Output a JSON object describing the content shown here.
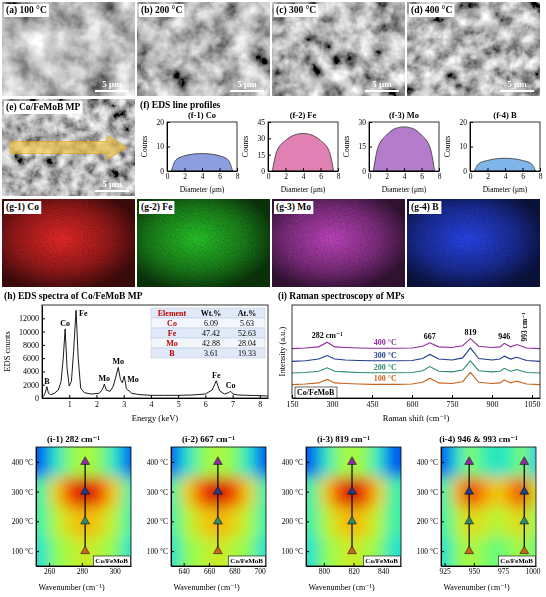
{
  "chart_data": [
    {
      "type": "image",
      "title": "(a) 100 °C",
      "annotations": [
        {
          "text": "5 μm"
        }
      ]
    },
    {
      "type": "image",
      "title": "(b) 200 °C",
      "annotations": [
        {
          "text": "5 μm"
        }
      ]
    },
    {
      "type": "image",
      "title": "(c) 300 °C",
      "annotations": [
        {
          "text": "5 μm"
        }
      ]
    },
    {
      "type": "image",
      "title": "(d) 400 °C",
      "annotations": [
        {
          "text": "5 μm"
        }
      ]
    },
    {
      "type": "image",
      "title": "(e) Co/FeMoB MP",
      "annotations": [
        {
          "text": "5 μm"
        }
      ]
    },
    {
      "type": "panel_group",
      "title": "(f) EDS line profiles",
      "panels": [
        {
          "type": "area",
          "title": "(f-1) Co",
          "x_label": "Diameter (μm)",
          "y_label": "Counts",
          "x": [
            0.5,
            1,
            2,
            3,
            4,
            5,
            6,
            7,
            7.5
          ],
          "values": [
            0,
            4.5,
            6.2,
            6.9,
            7.1,
            6.9,
            6.2,
            4.5,
            0
          ],
          "color": "#6f86d6",
          "xlim": [
            0,
            8
          ],
          "xticks": [
            0,
            2,
            4,
            6,
            8
          ],
          "ylim": [
            0,
            20
          ],
          "yticks": [
            0,
            10,
            20
          ]
        },
        {
          "type": "area",
          "title": "(f-2) Fe",
          "x_label": "Diameter (μm)",
          "y_label": "Counts",
          "x": [
            0.5,
            1,
            2,
            3,
            4,
            5,
            6,
            7,
            7.5
          ],
          "values": [
            0,
            18,
            28,
            33,
            34.5,
            33,
            28,
            18,
            0
          ],
          "color": "#d9609f",
          "xlim": [
            0,
            8
          ],
          "xticks": [
            0,
            2,
            4,
            6,
            8
          ],
          "ylim": [
            0,
            45
          ],
          "yticks": [
            0,
            15,
            30,
            45
          ]
        },
        {
          "type": "area",
          "title": "(f-3) Mo",
          "x_label": "Diameter (μm)",
          "y_label": "Counts",
          "x": [
            0.5,
            1,
            2,
            3,
            4,
            5,
            6,
            7,
            7.5
          ],
          "values": [
            0,
            14,
            22,
            26,
            27,
            26,
            22,
            14,
            0
          ],
          "color": "#a35bbf",
          "xlim": [
            0,
            8
          ],
          "xticks": [
            0,
            2,
            4,
            6,
            8
          ],
          "ylim": [
            0,
            30
          ],
          "yticks": [
            0,
            15,
            30
          ]
        },
        {
          "type": "area",
          "title": "(f-4) B",
          "x_label": "Diameter (μm)",
          "y_label": "Counts",
          "x": [
            0.5,
            1,
            2,
            3,
            4,
            5,
            6,
            7,
            7.5
          ],
          "values": [
            0,
            3,
            4.3,
            5,
            5.2,
            5,
            4.3,
            3,
            0
          ],
          "color": "#5fa3e3",
          "xlim": [
            0,
            8
          ],
          "xticks": [
            0,
            2,
            4,
            6,
            8
          ],
          "ylim": [
            0,
            20
          ],
          "yticks": [
            0,
            10,
            20
          ]
        }
      ]
    },
    {
      "type": "map",
      "title": "(g-1) Co",
      "color": "#ff2a2a"
    },
    {
      "type": "map",
      "title": "(g-2) Fe",
      "color": "#2ad52a"
    },
    {
      "type": "map",
      "title": "(g-3) Mo",
      "color": "#d04ad0"
    },
    {
      "type": "map",
      "title": "(g-4) B",
      "color": "#2a4aff"
    },
    {
      "type": "line",
      "title": "(h) EDS spectra of Co/FeMoB MP",
      "x_label": "Energy (keV)",
      "y_label": "EDS counts",
      "x": [
        0.05,
        0.12,
        0.18,
        0.24,
        0.32,
        0.45,
        0.6,
        0.7,
        0.78,
        0.85,
        0.92,
        1.0,
        1.08,
        1.16,
        1.25,
        1.33,
        1.42,
        1.55,
        1.8,
        2.1,
        2.22,
        2.29,
        2.36,
        2.5,
        2.62,
        2.7,
        2.8,
        2.88,
        2.95,
        3.02,
        3.1,
        3.3,
        3.6,
        4.0,
        4.5,
        5.0,
        5.5,
        6.0,
        6.25,
        6.4,
        6.52,
        6.7,
        6.85,
        6.93,
        7.02,
        7.2,
        7.6,
        8.0,
        8.3
      ],
      "values": [
        200,
        800,
        1700,
        700,
        500,
        700,
        1200,
        2500,
        6000,
        10400,
        4500,
        1800,
        2500,
        7000,
        13200,
        6000,
        1500,
        800,
        600,
        700,
        1300,
        2100,
        1200,
        1000,
        1800,
        3000,
        4600,
        2800,
        2300,
        3300,
        1400,
        700,
        500,
        400,
        400,
        400,
        450,
        600,
        1200,
        2600,
        1100,
        600,
        800,
        1000,
        600,
        450,
        400,
        350,
        300
      ],
      "color": "#000000",
      "xlim": [
        0,
        8.3
      ],
      "xticks": [
        1,
        2,
        3,
        4,
        5,
        6,
        7,
        8
      ],
      "ylim": [
        0,
        14000
      ],
      "yticks": [
        0,
        2000,
        4000,
        6000,
        8000,
        10000,
        12000
      ],
      "annotations": [
        {
          "text": "B",
          "x": 0.18,
          "y": 1700
        },
        {
          "text": "Co",
          "x": 0.85,
          "y": 10400
        },
        {
          "text": "Fe",
          "x": 1.25,
          "y": 13200
        },
        {
          "text": "Mo",
          "x": 2.29,
          "y": 2100
        },
        {
          "text": "Mo",
          "x": 2.8,
          "y": 4600
        },
        {
          "text": "Mo",
          "x": 3.02,
          "y": 3300
        },
        {
          "text": "Fe",
          "x": 6.4,
          "y": 2600
        },
        {
          "text": "Co",
          "x": 6.93,
          "y": 1000
        }
      ],
      "table": {
        "columns": [
          "Element",
          "Wt.%",
          "At.%"
        ],
        "rows": [
          [
            "Co",
            "6.09",
            "5.63"
          ],
          [
            "Fe",
            "47.42",
            "52.63"
          ],
          [
            "Mo",
            "42.88",
            "28.04"
          ],
          [
            "B",
            "3.61",
            "19.33"
          ]
        ]
      }
    },
    {
      "type": "line",
      "title": "(i) Raman spectroscopy of MPs",
      "x_label": "Raman shift (cm⁻¹)",
      "y_label": "Intensity (a.u.)",
      "tick_labels": "x",
      "x": [
        150,
        200,
        250,
        282,
        310,
        350,
        400,
        450,
        500,
        550,
        600,
        640,
        667,
        700,
        750,
        790,
        819,
        850,
        900,
        930,
        946,
        970,
        993,
        1030,
        1080
      ],
      "xlim": [
        150,
        1080
      ],
      "xticks": [
        150,
        300,
        450,
        600,
        750,
        900,
        1050
      ],
      "ylim": [
        0,
        16
      ],
      "series": [
        {
          "name": "100 °C",
          "color": "#c8641e",
          "values": [
            2.3,
            2.4,
            2.6,
            3.2,
            2.6,
            2.5,
            2.4,
            2.35,
            2.35,
            2.35,
            2.4,
            2.7,
            3.4,
            2.6,
            2.5,
            2.8,
            4.4,
            2.7,
            2.5,
            2.6,
            3.1,
            2.6,
            2.9,
            2.4,
            2.3
          ]
        },
        {
          "name": "200 °C",
          "color": "#2e8b6e",
          "values": [
            4.3,
            4.4,
            4.6,
            5.2,
            4.6,
            4.5,
            4.4,
            4.35,
            4.35,
            4.35,
            4.4,
            4.7,
            5.4,
            4.6,
            4.5,
            4.8,
            6.4,
            4.7,
            4.5,
            4.6,
            5.1,
            4.6,
            4.9,
            4.4,
            4.3
          ]
        },
        {
          "name": "300 °C",
          "color": "#1f3d8c",
          "values": [
            6.3,
            6.4,
            6.7,
            7.3,
            6.7,
            6.55,
            6.45,
            6.4,
            6.4,
            6.4,
            6.45,
            6.8,
            7.5,
            6.7,
            6.55,
            6.9,
            8.6,
            6.8,
            6.55,
            6.7,
            7.2,
            6.7,
            7.0,
            6.45,
            6.3
          ]
        },
        {
          "name": "400 °C",
          "color": "#8b2f9a",
          "values": [
            8.5,
            8.6,
            8.8,
            9.6,
            8.8,
            8.7,
            8.6,
            8.55,
            8.55,
            8.55,
            8.6,
            8.9,
            9.5,
            8.8,
            8.7,
            9.0,
            10.2,
            8.9,
            8.7,
            8.8,
            9.4,
            8.8,
            9.2,
            8.6,
            8.5
          ]
        }
      ],
      "annotations": [
        {
          "text": "282 cm⁻¹",
          "x": 282
        },
        {
          "text": "667",
          "x": 667
        },
        {
          "text": "819",
          "x": 819
        },
        {
          "text": "946",
          "x": 946
        },
        {
          "text": "993 cm⁻¹",
          "x": 993
        },
        {
          "text": "Co/FeMoB"
        }
      ]
    },
    {
      "type": "heatmap",
      "title": "(i-1) 282 cm⁻¹",
      "x_label": "Wavenumber (cm⁻¹)",
      "xlim": [
        252,
        310
      ],
      "xticks": [
        260,
        280,
        300
      ],
      "ylim": [
        50,
        450
      ],
      "yticks": [
        {
          "value": 100,
          "label": "100 °C"
        },
        {
          "value": 200,
          "label": "200 °C"
        },
        {
          "value": 300,
          "label": "300 °C"
        },
        {
          "value": 400,
          "label": "400 °C"
        }
      ],
      "cells_x": [
        255,
        264,
        273,
        282,
        291,
        300,
        309
      ],
      "cells_y": [
        100,
        200,
        300,
        400
      ],
      "cells": [
        [
          0.35,
          0.5,
          0.55,
          0.6,
          0.55,
          0.5,
          0.35
        ],
        [
          0.4,
          0.55,
          0.65,
          0.7,
          0.65,
          0.55,
          0.4
        ],
        [
          0.4,
          0.65,
          0.85,
          0.95,
          0.85,
          0.65,
          0.4
        ],
        [
          0.15,
          0.35,
          0.5,
          0.55,
          0.5,
          0.35,
          0.15
        ]
      ],
      "peaks": [
        [
          282,
          282,
          282,
          282
        ]
      ],
      "colors": [
        "#c8641e",
        "#2e8b6e",
        "#1f3d8c",
        "#8b2f9a"
      ],
      "annotations": [
        {
          "text": "Co/FeMoB"
        }
      ]
    },
    {
      "type": "heatmap",
      "title": "(i-2) 667 cm⁻¹",
      "x_label": "Wavenumber (cm⁻¹)",
      "xlim": [
        630,
        705
      ],
      "xticks": [
        640,
        660,
        680,
        700
      ],
      "ylim": [
        50,
        450
      ],
      "yticks": [
        {
          "value": 100,
          "label": "100 °C"
        },
        {
          "value": 200,
          "label": "200 °C"
        },
        {
          "value": 300,
          "label": "300 °C"
        },
        {
          "value": 400,
          "label": "400 °C"
        }
      ],
      "cells_x": [
        631,
        643,
        655,
        667,
        679,
        691,
        703
      ],
      "cells_y": [
        100,
        200,
        300,
        400
      ],
      "cells": [
        [
          0.35,
          0.5,
          0.55,
          0.6,
          0.55,
          0.5,
          0.35
        ],
        [
          0.4,
          0.55,
          0.65,
          0.7,
          0.65,
          0.55,
          0.4
        ],
        [
          0.4,
          0.65,
          0.85,
          0.95,
          0.85,
          0.65,
          0.4
        ],
        [
          0.15,
          0.35,
          0.5,
          0.55,
          0.5,
          0.35,
          0.15
        ]
      ],
      "peaks": [
        [
          667,
          667,
          667,
          667
        ]
      ],
      "colors": [
        "#c8641e",
        "#2e8b6e",
        "#1f3d8c",
        "#8b2f9a"
      ],
      "annotations": [
        {
          "text": "Co/FeMoB"
        }
      ]
    },
    {
      "type": "heatmap",
      "title": "(i-3) 819 cm⁻¹",
      "x_label": "Wavenumber (cm⁻¹)",
      "xlim": [
        788,
        852
      ],
      "xticks": [
        800,
        820,
        840
      ],
      "ylim": [
        50,
        450
      ],
      "yticks": [
        {
          "value": 100,
          "label": "100 °C"
        },
        {
          "value": 200,
          "label": "200 °C"
        },
        {
          "value": 300,
          "label": "300 °C"
        },
        {
          "value": 400,
          "label": "400 °C"
        }
      ],
      "cells_x": [
        792,
        801,
        810,
        819,
        828,
        837,
        846
      ],
      "cells_y": [
        100,
        200,
        300,
        400
      ],
      "cells": [
        [
          0.35,
          0.5,
          0.55,
          0.6,
          0.55,
          0.5,
          0.35
        ],
        [
          0.4,
          0.55,
          0.65,
          0.7,
          0.65,
          0.55,
          0.4
        ],
        [
          0.4,
          0.65,
          0.85,
          0.95,
          0.85,
          0.65,
          0.4
        ],
        [
          0.15,
          0.35,
          0.5,
          0.55,
          0.5,
          0.35,
          0.15
        ]
      ],
      "peaks": [
        [
          819,
          819,
          819,
          819
        ]
      ],
      "colors": [
        "#c8641e",
        "#2e8b6e",
        "#1f3d8c",
        "#8b2f9a"
      ],
      "annotations": [
        {
          "text": "Co/FeMoB"
        }
      ]
    },
    {
      "type": "heatmap",
      "title": "(i-4) 946 & 993 cm⁻¹",
      "x_label": "Wavenumber (cm⁻¹)",
      "xlim": [
        922,
        1003
      ],
      "xticks": [
        925,
        950,
        975,
        1000
      ],
      "ylim": [
        50,
        450
      ],
      "yticks": [
        {
          "value": 100,
          "label": "100 °C"
        },
        {
          "value": 200,
          "label": "200 °C"
        },
        {
          "value": 300,
          "label": "300 °C"
        },
        {
          "value": 400,
          "label": "400 °C"
        }
      ],
      "cells_x": [
        925,
        937,
        946,
        958,
        970,
        982,
        993,
        1002
      ],
      "cells_y": [
        100,
        200,
        300,
        400
      ],
      "cells": [
        [
          0.35,
          0.5,
          0.55,
          0.5,
          0.45,
          0.5,
          0.55,
          0.45
        ],
        [
          0.4,
          0.55,
          0.65,
          0.6,
          0.55,
          0.6,
          0.65,
          0.5
        ],
        [
          0.4,
          0.7,
          0.9,
          0.75,
          0.65,
          0.75,
          0.9,
          0.6
        ],
        [
          0.15,
          0.35,
          0.5,
          0.4,
          0.35,
          0.4,
          0.5,
          0.3
        ]
      ],
      "peaks": [
        [
          946,
          946,
          946,
          946
        ],
        [
          993,
          993,
          993,
          993
        ]
      ],
      "colors": [
        "#c8641e",
        "#2e8b6e",
        "#1f3d8c",
        "#8b2f9a"
      ],
      "annotations": [
        {
          "text": "Co/FeMoB"
        }
      ]
    }
  ]
}
